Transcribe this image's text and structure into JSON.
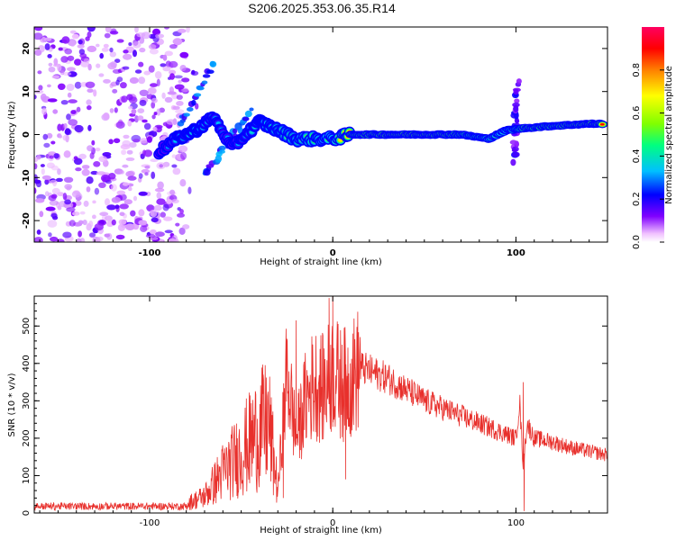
{
  "title": "S206.2025.353.06.35.R14",
  "colors": {
    "snr_line": "#e8302c",
    "spectro_bg": "#ffffff"
  },
  "chart_data": [
    {
      "type": "heatmap",
      "name": "spectrogram",
      "xlabel": "Height of straight line (km)",
      "ylabel": "Frequency (Hz)",
      "xlim": [
        -163,
        150
      ],
      "ylim": [
        -25,
        25
      ],
      "xticks": [
        -100,
        0,
        100
      ],
      "yticks": [
        -20,
        -10,
        0,
        10,
        20
      ],
      "colorbar": {
        "label": "Normalized spectral amplitude",
        "range": [
          0,
          1
        ],
        "ticks": [
          "0.0",
          "0.2",
          "0.4",
          "0.6",
          "0.8"
        ],
        "tick_values": [
          0.0,
          0.2,
          0.4,
          0.6,
          0.8
        ],
        "colormap": [
          "#ffffff",
          "#f0c0ff",
          "#8000ff",
          "#0000ff",
          "#00c0ff",
          "#00ff80",
          "#80ff00",
          "#ffff00",
          "#ff8000",
          "#ff0000",
          "#ff0060"
        ]
      },
      "noise_region": {
        "x": [
          -163,
          -80
        ],
        "y": [
          -25,
          25
        ],
        "amplitude": 0.15
      },
      "main_ridge": [
        {
          "x": -95,
          "y": -4,
          "amp": 0.25
        },
        {
          "x": -85,
          "y": -1,
          "amp": 0.35
        },
        {
          "x": -75,
          "y": 1,
          "amp": 0.4
        },
        {
          "x": -65,
          "y": 4,
          "amp": 0.35
        },
        {
          "x": -55,
          "y": -3,
          "amp": 0.3
        },
        {
          "x": -40,
          "y": 3,
          "amp": 0.4
        },
        {
          "x": -30,
          "y": 1,
          "amp": 0.45
        },
        {
          "x": -20,
          "y": -1,
          "amp": 0.5
        },
        {
          "x": -10,
          "y": -1,
          "amp": 0.55
        },
        {
          "x": 0,
          "y": -1,
          "amp": 0.6
        },
        {
          "x": 10,
          "y": 0,
          "amp": 0.85
        },
        {
          "x": 30,
          "y": 0,
          "amp": 0.9
        },
        {
          "x": 50,
          "y": 0,
          "amp": 0.9
        },
        {
          "x": 70,
          "y": 0,
          "amp": 0.85
        },
        {
          "x": 85,
          "y": -1,
          "amp": 0.7
        },
        {
          "x": 95,
          "y": 1,
          "amp": 0.6
        },
        {
          "x": 105,
          "y": 1.5,
          "amp": 0.85
        },
        {
          "x": 120,
          "y": 2,
          "amp": 0.85
        },
        {
          "x": 140,
          "y": 2.5,
          "amp": 0.9
        },
        {
          "x": 148,
          "y": 2.5,
          "amp": 0.9
        }
      ],
      "streaks": [
        {
          "x0": -90,
          "y0": -4,
          "x1": -65,
          "y1": 17,
          "amp": 0.3
        },
        {
          "x0": -70,
          "y0": -9,
          "x1": -45,
          "y1": 5,
          "amp": 0.3
        },
        {
          "x0": 99,
          "y0": -6,
          "x1": 101,
          "y1": 12,
          "amp": 0.2
        }
      ]
    },
    {
      "type": "line",
      "name": "snr",
      "xlabel": "Height of straight line (km)",
      "ylabel": "SNR (10 * v/v)",
      "xlim": [
        -163,
        150
      ],
      "ylim": [
        0,
        580
      ],
      "xticks": [
        -100,
        0,
        100
      ],
      "yticks": [
        0,
        100,
        200,
        300,
        400,
        500
      ],
      "envelope": {
        "x": [
          -163,
          -90,
          -80,
          -70,
          -60,
          -50,
          -40,
          -35,
          -30,
          -25,
          -20,
          -15,
          -10,
          -5,
          0,
          5,
          10,
          15,
          20,
          30,
          40,
          50,
          60,
          70,
          80,
          90,
          95,
          100,
          102,
          104,
          106,
          110,
          120,
          130,
          140,
          150
        ],
        "y": [
          18,
          20,
          25,
          45,
          110,
          160,
          220,
          240,
          60,
          380,
          200,
          300,
          350,
          330,
          380,
          340,
          360,
          390,
          380,
          360,
          330,
          300,
          280,
          260,
          240,
          220,
          210,
          200,
          300,
          120,
          240,
          200,
          190,
          175,
          165,
          155
        ]
      },
      "spikes": [
        {
          "x": -20,
          "y": 515
        },
        {
          "x": -2,
          "y": 575
        },
        {
          "x": 0,
          "y": 580
        },
        {
          "x": 5,
          "y": 450
        },
        {
          "x": 104,
          "y": 350
        },
        {
          "x": 104.5,
          "y": 5
        },
        {
          "x": 7,
          "y": 90
        },
        {
          "x": -38,
          "y": 370
        },
        {
          "x": -27,
          "y": 40
        }
      ]
    }
  ]
}
